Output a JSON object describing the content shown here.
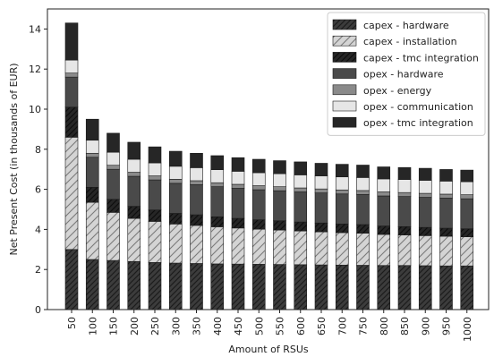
{
  "chart_data": {
    "type": "bar",
    "stacked": true,
    "title": "",
    "xlabel": "Amount of RSUs",
    "ylabel": "Net Present Cost (in thousands of EUR)",
    "ylim": [
      0,
      15
    ],
    "yticks": [
      0,
      2,
      4,
      6,
      8,
      10,
      12,
      14
    ],
    "grid": false,
    "legend_position": "top-right",
    "categories": [
      "50",
      "100",
      "150",
      "200",
      "250",
      "300",
      "350",
      "400",
      "450",
      "500",
      "550",
      "600",
      "650",
      "700",
      "750",
      "800",
      "850",
      "900",
      "950",
      "1000"
    ],
    "series": [
      {
        "name": "capex - hardware",
        "pattern": "hatch-dense",
        "color": "#3a3a3a",
        "values": [
          3.0,
          2.5,
          2.45,
          2.4,
          2.35,
          2.32,
          2.3,
          2.28,
          2.27,
          2.26,
          2.25,
          2.24,
          2.23,
          2.22,
          2.21,
          2.2,
          2.2,
          2.19,
          2.18,
          2.18
        ]
      },
      {
        "name": "capex - installation",
        "pattern": "hatch-sparse",
        "color": "#c8c8c8",
        "values": [
          5.6,
          2.85,
          2.4,
          2.15,
          2.05,
          1.95,
          1.9,
          1.85,
          1.8,
          1.75,
          1.72,
          1.68,
          1.65,
          1.62,
          1.6,
          1.55,
          1.52,
          1.5,
          1.48,
          1.45
        ]
      },
      {
        "name": "capex - tmc integration",
        "pattern": "hatch-dense",
        "color": "#222222",
        "values": [
          1.5,
          0.75,
          0.65,
          0.6,
          0.57,
          0.53,
          0.53,
          0.5,
          0.48,
          0.47,
          0.46,
          0.45,
          0.44,
          0.43,
          0.43,
          0.42,
          0.42,
          0.41,
          0.4,
          0.4
        ]
      },
      {
        "name": "opex - hardware",
        "pattern": "solid",
        "color": "#4a4a4a",
        "values": [
          1.5,
          1.5,
          1.5,
          1.5,
          1.5,
          1.5,
          1.5,
          1.5,
          1.5,
          1.5,
          1.5,
          1.5,
          1.5,
          1.5,
          1.5,
          1.5,
          1.5,
          1.5,
          1.5,
          1.5
        ]
      },
      {
        "name": "opex - energy",
        "pattern": "solid",
        "color": "#8a8a8a",
        "values": [
          0.2,
          0.2,
          0.2,
          0.2,
          0.2,
          0.2,
          0.2,
          0.2,
          0.2,
          0.2,
          0.2,
          0.2,
          0.2,
          0.2,
          0.2,
          0.2,
          0.2,
          0.2,
          0.2,
          0.2
        ]
      },
      {
        "name": "opex - communication",
        "pattern": "solid",
        "color": "#e6e6e6",
        "values": [
          0.65,
          0.65,
          0.65,
          0.65,
          0.65,
          0.65,
          0.65,
          0.65,
          0.65,
          0.65,
          0.65,
          0.65,
          0.65,
          0.65,
          0.65,
          0.65,
          0.65,
          0.65,
          0.65,
          0.65
        ]
      },
      {
        "name": "opex - tmc integration",
        "pattern": "solid",
        "color": "#262626",
        "values": [
          1.85,
          1.05,
          0.95,
          0.85,
          0.8,
          0.75,
          0.72,
          0.7,
          0.68,
          0.67,
          0.65,
          0.65,
          0.63,
          0.63,
          0.62,
          0.6,
          0.6,
          0.6,
          0.58,
          0.58
        ]
      }
    ]
  }
}
